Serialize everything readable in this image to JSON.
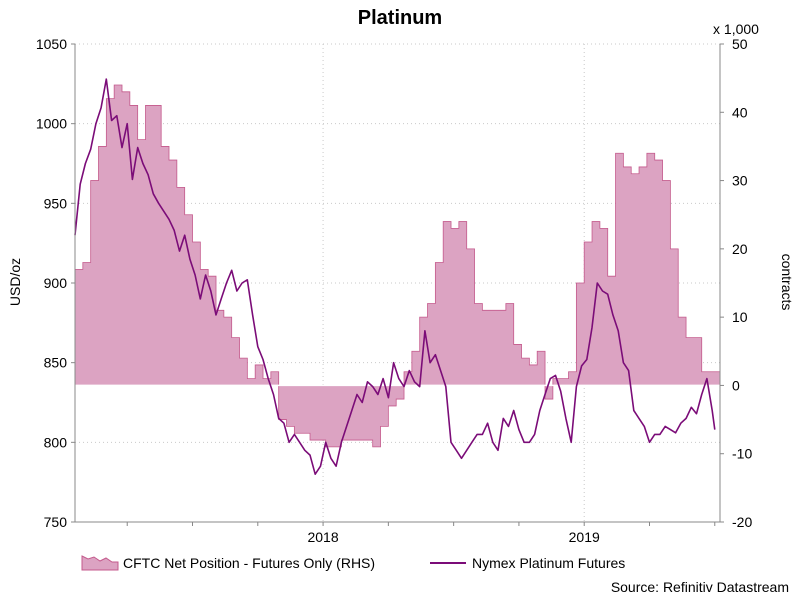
{
  "chart_data": {
    "type": "area+line",
    "title": "Platinum",
    "ylabel_left": "USD/oz",
    "ylabel_right": "contracts",
    "right_multiplier": "x 1,000",
    "source": "Source: Refinitiv Datastream",
    "ylim_left": [
      750,
      1050
    ],
    "ylim_right": [
      -20,
      50
    ],
    "xlim": [
      2017.05,
      2019.52
    ],
    "left_ticks": [
      "750",
      "800",
      "850",
      "900",
      "950",
      "1000",
      "1050"
    ],
    "right_ticks": [
      "-20",
      "-10",
      "0",
      "10",
      "20",
      "30",
      "40",
      "50"
    ],
    "x_ticks": [
      {
        "label": "2018",
        "x": 2018.0
      },
      {
        "label": "2019",
        "x": 2019.0
      }
    ],
    "grid": true,
    "legend": {
      "position": "bottom",
      "entries": [
        "CFTC Net Position - Futures Only (RHS)",
        "Nymex Platinum Futures"
      ]
    },
    "colors": {
      "area_fill": "#dca3c2",
      "area_edge": "#c45a8c",
      "line": "#7b0c78",
      "grid": "#c9c9c9",
      "zero_line": "#ffffff"
    },
    "series": [
      {
        "name": "CFTC Net Position - Futures Only (RHS)",
        "axis": "right",
        "kind": "area",
        "x": [
          2017.05,
          2017.08,
          2017.11,
          2017.14,
          2017.17,
          2017.2,
          2017.23,
          2017.26,
          2017.29,
          2017.32,
          2017.35,
          2017.38,
          2017.41,
          2017.44,
          2017.47,
          2017.5,
          2017.53,
          2017.56,
          2017.59,
          2017.62,
          2017.65,
          2017.68,
          2017.71,
          2017.74,
          2017.77,
          2017.8,
          2017.83,
          2017.86,
          2017.89,
          2017.92,
          2017.95,
          2017.98,
          2018.01,
          2018.04,
          2018.07,
          2018.1,
          2018.13,
          2018.16,
          2018.19,
          2018.22,
          2018.25,
          2018.28,
          2018.31,
          2018.34,
          2018.37,
          2018.4,
          2018.43,
          2018.46,
          2018.49,
          2018.52,
          2018.55,
          2018.58,
          2018.61,
          2018.64,
          2018.67,
          2018.7,
          2018.73,
          2018.76,
          2018.79,
          2018.82,
          2018.85,
          2018.88,
          2018.91,
          2018.94,
          2018.97,
          2019.0,
          2019.03,
          2019.06,
          2019.09,
          2019.12,
          2019.15,
          2019.18,
          2019.21,
          2019.24,
          2019.27,
          2019.3,
          2019.33,
          2019.36,
          2019.39,
          2019.42,
          2019.45,
          2019.48,
          2019.5
        ],
        "values": [
          17,
          18,
          30,
          35,
          42,
          44,
          43,
          41,
          36,
          41,
          41,
          35,
          33,
          29,
          25,
          21,
          17,
          16,
          11,
          10,
          7,
          4,
          1,
          3,
          1,
          2,
          -5,
          -6,
          -7,
          -7,
          -8,
          -8,
          -9,
          -9,
          -8,
          -8,
          -8,
          -8,
          -9,
          -6,
          -3,
          -2,
          2,
          5,
          10,
          12,
          18,
          24,
          23,
          24,
          20,
          12,
          11,
          11,
          11,
          12,
          6,
          4,
          3,
          5,
          -2,
          1,
          1,
          2,
          15,
          21,
          24,
          23,
          16,
          34,
          32,
          31,
          32,
          34,
          33,
          30,
          20,
          10,
          7,
          7,
          2,
          2,
          2
        ],
        "values_unit": "thousand contracts"
      },
      {
        "name": "Nymex Platinum Futures",
        "axis": "left",
        "kind": "line",
        "x": [
          2017.05,
          2017.07,
          2017.09,
          2017.11,
          2017.13,
          2017.15,
          2017.17,
          2017.19,
          2017.21,
          2017.23,
          2017.25,
          2017.27,
          2017.29,
          2017.31,
          2017.33,
          2017.35,
          2017.37,
          2017.39,
          2017.41,
          2017.43,
          2017.45,
          2017.47,
          2017.49,
          2017.51,
          2017.53,
          2017.55,
          2017.57,
          2017.59,
          2017.61,
          2017.63,
          2017.65,
          2017.67,
          2017.69,
          2017.71,
          2017.73,
          2017.75,
          2017.77,
          2017.79,
          2017.81,
          2017.83,
          2017.85,
          2017.87,
          2017.89,
          2017.91,
          2017.93,
          2017.95,
          2017.97,
          2017.99,
          2018.01,
          2018.03,
          2018.05,
          2018.07,
          2018.09,
          2018.11,
          2018.13,
          2018.15,
          2018.17,
          2018.19,
          2018.21,
          2018.23,
          2018.25,
          2018.27,
          2018.29,
          2018.31,
          2018.33,
          2018.35,
          2018.37,
          2018.39,
          2018.41,
          2018.43,
          2018.45,
          2018.47,
          2018.49,
          2018.51,
          2018.53,
          2018.55,
          2018.57,
          2018.59,
          2018.61,
          2018.63,
          2018.65,
          2018.67,
          2018.69,
          2018.71,
          2018.73,
          2018.75,
          2018.77,
          2018.79,
          2018.81,
          2018.83,
          2018.85,
          2018.87,
          2018.89,
          2018.91,
          2018.93,
          2018.95,
          2018.97,
          2018.99,
          2019.01,
          2019.03,
          2019.05,
          2019.07,
          2019.09,
          2019.11,
          2019.13,
          2019.15,
          2019.17,
          2019.19,
          2019.21,
          2019.23,
          2019.25,
          2019.27,
          2019.29,
          2019.31,
          2019.33,
          2019.35,
          2019.37,
          2019.39,
          2019.41,
          2019.43,
          2019.45,
          2019.47,
          2019.49,
          2019.5
        ],
        "values": [
          930,
          962,
          975,
          984,
          1000,
          1010,
          1028,
          1002,
          1005,
          985,
          1000,
          965,
          985,
          975,
          968,
          956,
          950,
          945,
          940,
          933,
          920,
          930,
          915,
          905,
          890,
          905,
          895,
          880,
          890,
          900,
          908,
          895,
          900,
          902,
          880,
          860,
          852,
          840,
          830,
          815,
          812,
          800,
          805,
          800,
          795,
          792,
          780,
          785,
          800,
          790,
          785,
          800,
          810,
          820,
          830,
          825,
          838,
          835,
          830,
          840,
          828,
          850,
          840,
          835,
          845,
          838,
          835,
          870,
          850,
          855,
          845,
          835,
          800,
          795,
          790,
          795,
          800,
          805,
          805,
          812,
          800,
          795,
          815,
          810,
          820,
          808,
          800,
          800,
          805,
          820,
          830,
          840,
          842,
          832,
          815,
          800,
          835,
          848,
          852,
          872,
          900,
          895,
          893,
          880,
          870,
          850,
          845,
          820,
          815,
          810,
          800,
          805,
          805,
          810,
          808,
          806,
          812,
          815,
          822,
          818,
          830,
          840,
          820,
          808
        ],
        "values_unit": "USD/oz"
      }
    ]
  }
}
